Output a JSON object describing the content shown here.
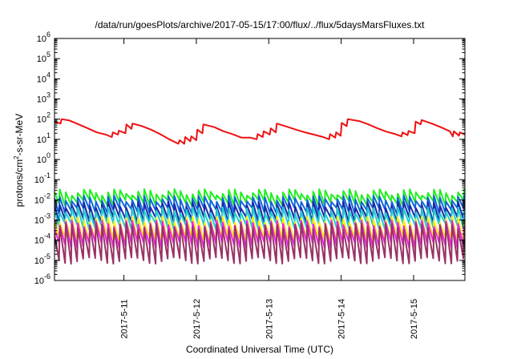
{
  "chart_data": {
    "type": "line",
    "title": "/data/run/goesPlots/archive/2017-05-15/17:00/flux/../flux/5daysMarsFluxes.txt",
    "xlabel": "Coordinated Universal Time (UTC)",
    "ylabel": "protons/cm²-s-sr-MeV",
    "y_scale": "log",
    "ylim": [
      1e-06,
      1000000.0
    ],
    "y_ticks": [
      {
        "value": 1e-06,
        "base": "10",
        "exp": "-6"
      },
      {
        "value": 1e-05,
        "base": "10",
        "exp": "-5"
      },
      {
        "value": 0.0001,
        "base": "10",
        "exp": "-4"
      },
      {
        "value": 0.001,
        "base": "10",
        "exp": "-3"
      },
      {
        "value": 0.01,
        "base": "10",
        "exp": "-2"
      },
      {
        "value": 0.1,
        "base": "10",
        "exp": "-1"
      },
      {
        "value": 1,
        "base": "10",
        "exp": "0"
      },
      {
        "value": 10,
        "base": "10",
        "exp": "1"
      },
      {
        "value": 100,
        "base": "10",
        "exp": "2"
      },
      {
        "value": 1000,
        "base": "10",
        "exp": "3"
      },
      {
        "value": 10000.0,
        "base": "10",
        "exp": "4"
      },
      {
        "value": 100000.0,
        "base": "10",
        "exp": "5"
      },
      {
        "value": 1000000.0,
        "base": "10",
        "exp": "6"
      }
    ],
    "xlim": [
      "2017-05-10T01:00",
      "2017-05-15T17:00"
    ],
    "x_ticks": [
      {
        "value": "2017-05-11T00:00",
        "label": "2017-5-11"
      },
      {
        "value": "2017-05-12T00:00",
        "label": "2017-5-12"
      },
      {
        "value": "2017-05-13T00:00",
        "label": "2017-5-13"
      },
      {
        "value": "2017-05-14T00:00",
        "label": "2017-5-14"
      },
      {
        "value": "2017-05-15T00:00",
        "label": "2017-5-15"
      }
    ],
    "grid": false,
    "series": [
      {
        "color": "#ee1111",
        "points": [
          [
            "2017-05-10T01:00",
            75
          ],
          [
            "2017-05-10T03:00",
            60
          ],
          [
            "2017-05-10T03:20",
            100
          ],
          [
            "2017-05-10T06:00",
            85
          ],
          [
            "2017-05-10T09:00",
            55
          ],
          [
            "2017-05-10T12:00",
            35
          ],
          [
            "2017-05-10T15:00",
            22
          ],
          [
            "2017-05-10T18:00",
            17
          ],
          [
            "2017-05-10T20:00",
            13
          ],
          [
            "2017-05-10T20:20",
            22
          ],
          [
            "2017-05-10T22:00",
            17
          ],
          [
            "2017-05-10T22:20",
            27
          ],
          [
            "2017-05-11T00:30",
            20
          ],
          [
            "2017-05-11T00:50",
            55
          ],
          [
            "2017-05-11T02:30",
            33
          ],
          [
            "2017-05-11T02:50",
            60
          ],
          [
            "2017-05-11T06:00",
            45
          ],
          [
            "2017-05-11T09:00",
            30
          ],
          [
            "2017-05-11T12:00",
            18
          ],
          [
            "2017-05-11T15:00",
            10
          ],
          [
            "2017-05-11T18:00",
            6
          ],
          [
            "2017-05-11T18:30",
            9
          ],
          [
            "2017-05-11T20:00",
            6
          ],
          [
            "2017-05-11T20:20",
            13
          ],
          [
            "2017-05-11T22:00",
            8
          ],
          [
            "2017-05-11T22:20",
            14
          ],
          [
            "2017-05-12T00:00",
            9
          ],
          [
            "2017-05-12T00:20",
            30
          ],
          [
            "2017-05-12T02:00",
            20
          ],
          [
            "2017-05-12T02:20",
            55
          ],
          [
            "2017-05-12T06:00",
            40
          ],
          [
            "2017-05-12T09:00",
            25
          ],
          [
            "2017-05-12T12:00",
            18
          ],
          [
            "2017-05-12T15:00",
            12
          ],
          [
            "2017-05-12T18:00",
            12
          ],
          [
            "2017-05-12T20:00",
            10
          ],
          [
            "2017-05-12T20:20",
            18
          ],
          [
            "2017-05-12T22:00",
            13
          ],
          [
            "2017-05-12T22:20",
            25
          ],
          [
            "2017-05-13T00:20",
            17
          ],
          [
            "2017-05-13T00:40",
            35
          ],
          [
            "2017-05-13T02:20",
            22
          ],
          [
            "2017-05-13T02:40",
            60
          ],
          [
            "2017-05-13T06:00",
            42
          ],
          [
            "2017-05-13T09:00",
            30
          ],
          [
            "2017-05-13T12:00",
            22
          ],
          [
            "2017-05-13T15:00",
            17
          ],
          [
            "2017-05-13T18:00",
            13
          ],
          [
            "2017-05-13T20:00",
            10
          ],
          [
            "2017-05-13T20:20",
            18
          ],
          [
            "2017-05-13T22:00",
            12
          ],
          [
            "2017-05-13T22:20",
            22
          ],
          [
            "2017-05-13T23:50",
            15
          ],
          [
            "2017-05-14T00:10",
            65
          ],
          [
            "2017-05-14T01:50",
            45
          ],
          [
            "2017-05-14T02:10",
            100
          ],
          [
            "2017-05-14T06:00",
            80
          ],
          [
            "2017-05-14T09:00",
            55
          ],
          [
            "2017-05-14T12:00",
            35
          ],
          [
            "2017-05-14T15:00",
            24
          ],
          [
            "2017-05-14T18:00",
            18
          ],
          [
            "2017-05-14T20:00",
            14
          ],
          [
            "2017-05-14T20:20",
            22
          ],
          [
            "2017-05-14T22:00",
            16
          ],
          [
            "2017-05-14T22:20",
            26
          ],
          [
            "2017-05-15T00:20",
            20
          ],
          [
            "2017-05-15T00:40",
            75
          ],
          [
            "2017-05-15T02:20",
            55
          ],
          [
            "2017-05-15T02:40",
            90
          ],
          [
            "2017-05-15T06:00",
            60
          ],
          [
            "2017-05-15T09:00",
            40
          ],
          [
            "2017-05-15T12:00",
            25
          ],
          [
            "2017-05-15T13:00",
            14
          ],
          [
            "2017-05-15T13:20",
            25
          ],
          [
            "2017-05-15T15:00",
            15
          ],
          [
            "2017-05-15T15:20",
            22
          ],
          [
            "2017-05-15T17:00",
            17
          ]
        ]
      },
      {
        "color": "#22ee22",
        "cycle_hours": 2,
        "peak": 0.025,
        "trough": 0.009
      },
      {
        "color": "#1166dd",
        "cycle_hours": 2,
        "peak": 0.012,
        "trough": 0.0035
      },
      {
        "color": "#1a2aa6",
        "cycle_hours": 2,
        "peak": 0.006,
        "trough": 0.0012
      },
      {
        "color": "#22cccc",
        "cycle_hours": 2,
        "peak": 0.0032,
        "trough": 0.0006
      },
      {
        "color": "#ffee00",
        "cycle_hours": 2,
        "peak": 0.0011,
        "trough": 0.00012
      },
      {
        "color": "#ee22ee",
        "cycle_hours": 2,
        "peak": 0.0007,
        "trough": 7e-05
      },
      {
        "color": "#993366",
        "cycle_hours": 2,
        "peak": 0.0005,
        "trough": 1.2e-05
      }
    ]
  }
}
